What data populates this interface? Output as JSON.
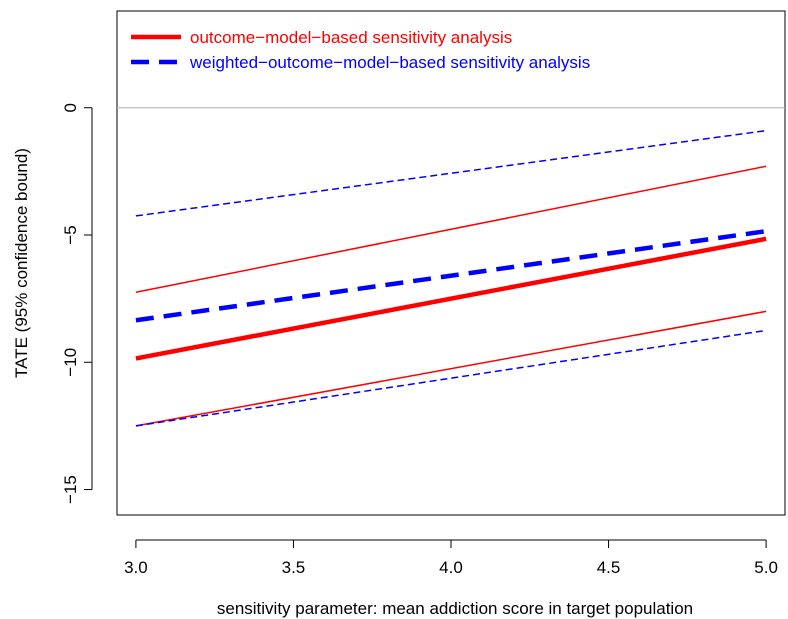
{
  "chart_data": {
    "type": "line",
    "title": "",
    "xlabel": "sensitivity parameter: mean addiction score in target population",
    "ylabel": "TATE (95% confidence bound)",
    "xlim": [
      2.94,
      5.06
    ],
    "ylim": [
      -16.0,
      3.8
    ],
    "xticks": [
      {
        "value": 3.0,
        "label": "3.0"
      },
      {
        "value": 3.5,
        "label": "3.5"
      },
      {
        "value": 4.0,
        "label": "4.0"
      },
      {
        "value": 4.5,
        "label": "4.5"
      },
      {
        "value": 5.0,
        "label": "5.0"
      }
    ],
    "yticks": [
      {
        "value": 0,
        "label": "0"
      },
      {
        "value": -5,
        "label": "−5"
      },
      {
        "value": -10,
        "label": "−10"
      },
      {
        "value": -15,
        "label": "−15"
      }
    ],
    "reference_line": {
      "y": 0,
      "color": "#b0b0b0"
    },
    "grid": false,
    "legend_position": "top-left",
    "legend": [
      {
        "label": "outcome−model−based sensitivity analysis",
        "color": "#ff0000",
        "style": "solid"
      },
      {
        "label": "weighted−outcome−model−based sensitivity analysis",
        "color": "#0000ff",
        "style": "dashed"
      }
    ],
    "series": [
      {
        "group": 0,
        "role": "estimate",
        "color": "#ff0000",
        "style": "solid",
        "weight": "thick",
        "x": [
          3.0,
          5.0
        ],
        "y": [
          -9.85,
          -5.15
        ]
      },
      {
        "group": 0,
        "role": "upper",
        "color": "#ff0000",
        "style": "solid",
        "weight": "thin",
        "x": [
          3.0,
          5.0
        ],
        "y": [
          -7.25,
          -2.3
        ]
      },
      {
        "group": 0,
        "role": "lower",
        "color": "#ff0000",
        "style": "solid",
        "weight": "thin",
        "x": [
          3.0,
          5.0
        ],
        "y": [
          -12.5,
          -8.0
        ]
      },
      {
        "group": 1,
        "role": "estimate",
        "color": "#0000ff",
        "style": "dashed",
        "weight": "thick",
        "x": [
          3.0,
          5.0
        ],
        "y": [
          -8.35,
          -4.85
        ]
      },
      {
        "group": 1,
        "role": "upper",
        "color": "#0000ff",
        "style": "dashed",
        "weight": "thin",
        "x": [
          3.0,
          5.0
        ],
        "y": [
          -4.25,
          -0.9
        ]
      },
      {
        "group": 1,
        "role": "lower",
        "color": "#0000ff",
        "style": "dashed",
        "weight": "thin",
        "x": [
          3.0,
          5.0
        ],
        "y": [
          -12.5,
          -8.75
        ]
      }
    ]
  }
}
